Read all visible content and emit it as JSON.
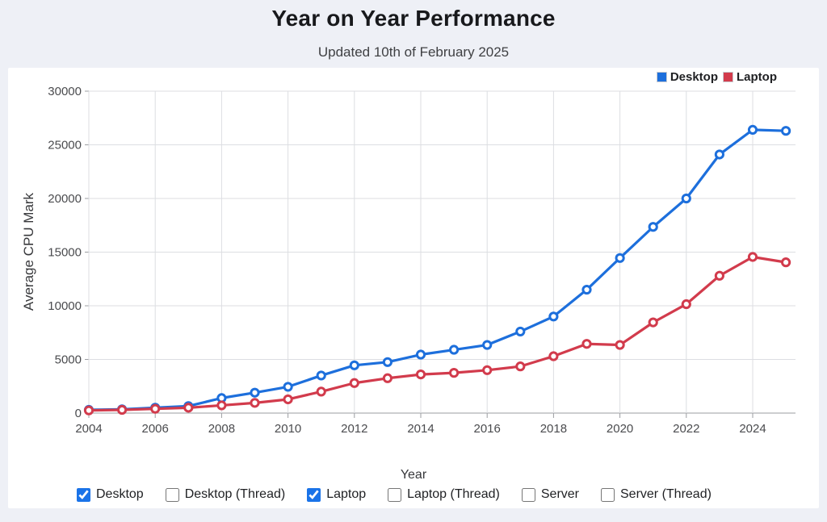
{
  "page": {
    "title": "Year on Year Performance",
    "subtitle": "Updated 10th of February 2025"
  },
  "chart_data": {
    "type": "line",
    "title": "Year on Year Performance",
    "subtitle": "Updated 10th of February 2025",
    "xlabel": "Year",
    "ylabel": "Average CPU Mark",
    "x": [
      2004,
      2005,
      2006,
      2007,
      2008,
      2009,
      2010,
      2011,
      2012,
      2013,
      2014,
      2015,
      2016,
      2017,
      2018,
      2019,
      2020,
      2021,
      2022,
      2023,
      2024,
      2025
    ],
    "xticks": [
      2004,
      2006,
      2008,
      2010,
      2012,
      2014,
      2016,
      2018,
      2020,
      2022,
      2024
    ],
    "yticks": [
      0,
      5000,
      10000,
      15000,
      20000,
      25000,
      30000
    ],
    "ylim": [
      0,
      30000
    ],
    "grid": true,
    "legend_position": "top-right",
    "marker": "open-circle",
    "series": [
      {
        "name": "Desktop",
        "color": "#1d6fdc",
        "values": [
          300,
          350,
          500,
          650,
          1400,
          1900,
          2450,
          3500,
          4450,
          4750,
          5450,
          5900,
          6350,
          7600,
          9000,
          11500,
          14450,
          17350,
          20000,
          24100,
          26400,
          26300
        ]
      },
      {
        "name": "Laptop",
        "color": "#d23b4c",
        "values": [
          250,
          300,
          400,
          500,
          720,
          950,
          1280,
          2000,
          2800,
          3250,
          3600,
          3750,
          4000,
          4350,
          5300,
          6450,
          6350,
          8450,
          10150,
          12800,
          14550,
          14050
        ]
      }
    ]
  },
  "controls": {
    "accent_color": "#1a73e8",
    "toggles": [
      {
        "label": "Desktop",
        "checked": true
      },
      {
        "label": "Desktop (Thread)",
        "checked": false
      },
      {
        "label": "Laptop",
        "checked": true
      },
      {
        "label": "Laptop (Thread)",
        "checked": false
      },
      {
        "label": "Server",
        "checked": false
      },
      {
        "label": "Server (Thread)",
        "checked": false
      }
    ]
  },
  "style": {
    "grid_color": "#dcdee2",
    "axis_color": "#9b9da1",
    "tick_text_color": "#4a4b4e"
  }
}
